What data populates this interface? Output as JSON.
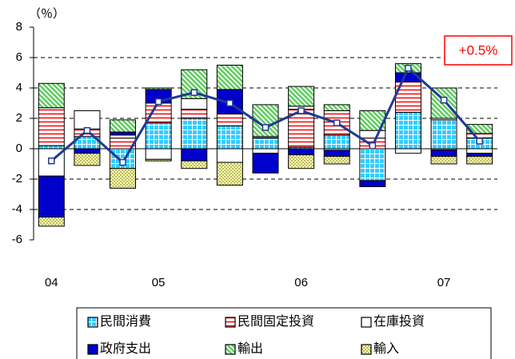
{
  "chart_data": {
    "type": "stacked-bar-line",
    "y_unit_label": "（％）",
    "annotation": "+0.5%",
    "categories": [
      "04",
      null,
      null,
      "05",
      null,
      null,
      null,
      "06",
      null,
      null,
      null,
      "07",
      null
    ],
    "series": [
      {
        "name": "民間消費",
        "color": "#33ccff",
        "values": [
          0.2,
          0.8,
          -1.3,
          1.7,
          2.0,
          1.5,
          0.7,
          0.1,
          0.9,
          -2.1,
          2.4,
          1.9,
          0.7
        ]
      },
      {
        "name": "民間固定投資",
        "color": "#ff0000",
        "values": [
          2.5,
          0.5,
          0.7,
          1.3,
          0.6,
          0.8,
          0.1,
          2.5,
          1.6,
          0.7,
          2.0,
          -0.1,
          0.3
        ]
      },
      {
        "name": "在庫投資",
        "color": "#ffffff",
        "values": [
          -1.8,
          1.2,
          0.2,
          -0.7,
          0.7,
          -0.9,
          -0.3,
          0.2,
          -0.1,
          0.5,
          -0.3,
          0.1,
          -0.3
        ]
      },
      {
        "name": "政府支出",
        "color": "#0000cc",
        "values": [
          -2.7,
          -0.3,
          0.2,
          0.9,
          -0.8,
          1.6,
          -1.3,
          -0.4,
          -0.4,
          -0.4,
          0.6,
          -0.4,
          -0.2
        ]
      },
      {
        "name": "輸出",
        "color": "#66cc66",
        "values": [
          1.6,
          0.0,
          0.8,
          0.1,
          1.9,
          1.6,
          2.1,
          1.3,
          0.4,
          1.3,
          0.6,
          2.0,
          0.6
        ]
      },
      {
        "name": "輸入",
        "color": "#ffff99",
        "values": [
          -0.6,
          -0.8,
          -1.3,
          -0.1,
          -0.5,
          -1.5,
          0.0,
          -0.9,
          -0.5,
          0.0,
          0.0,
          -0.5,
          -0.5
        ]
      }
    ],
    "line": {
      "color": "#1f3a93",
      "values": [
        -0.8,
        1.2,
        -0.9,
        3.1,
        3.7,
        3.0,
        1.4,
        2.5,
        1.7,
        0.2,
        5.3,
        3.2,
        0.5
      ]
    },
    "ylim": [
      -6,
      8
    ],
    "yticks": [
      -6,
      -4,
      -2,
      0,
      2,
      4,
      6,
      8
    ],
    "grid": true
  }
}
